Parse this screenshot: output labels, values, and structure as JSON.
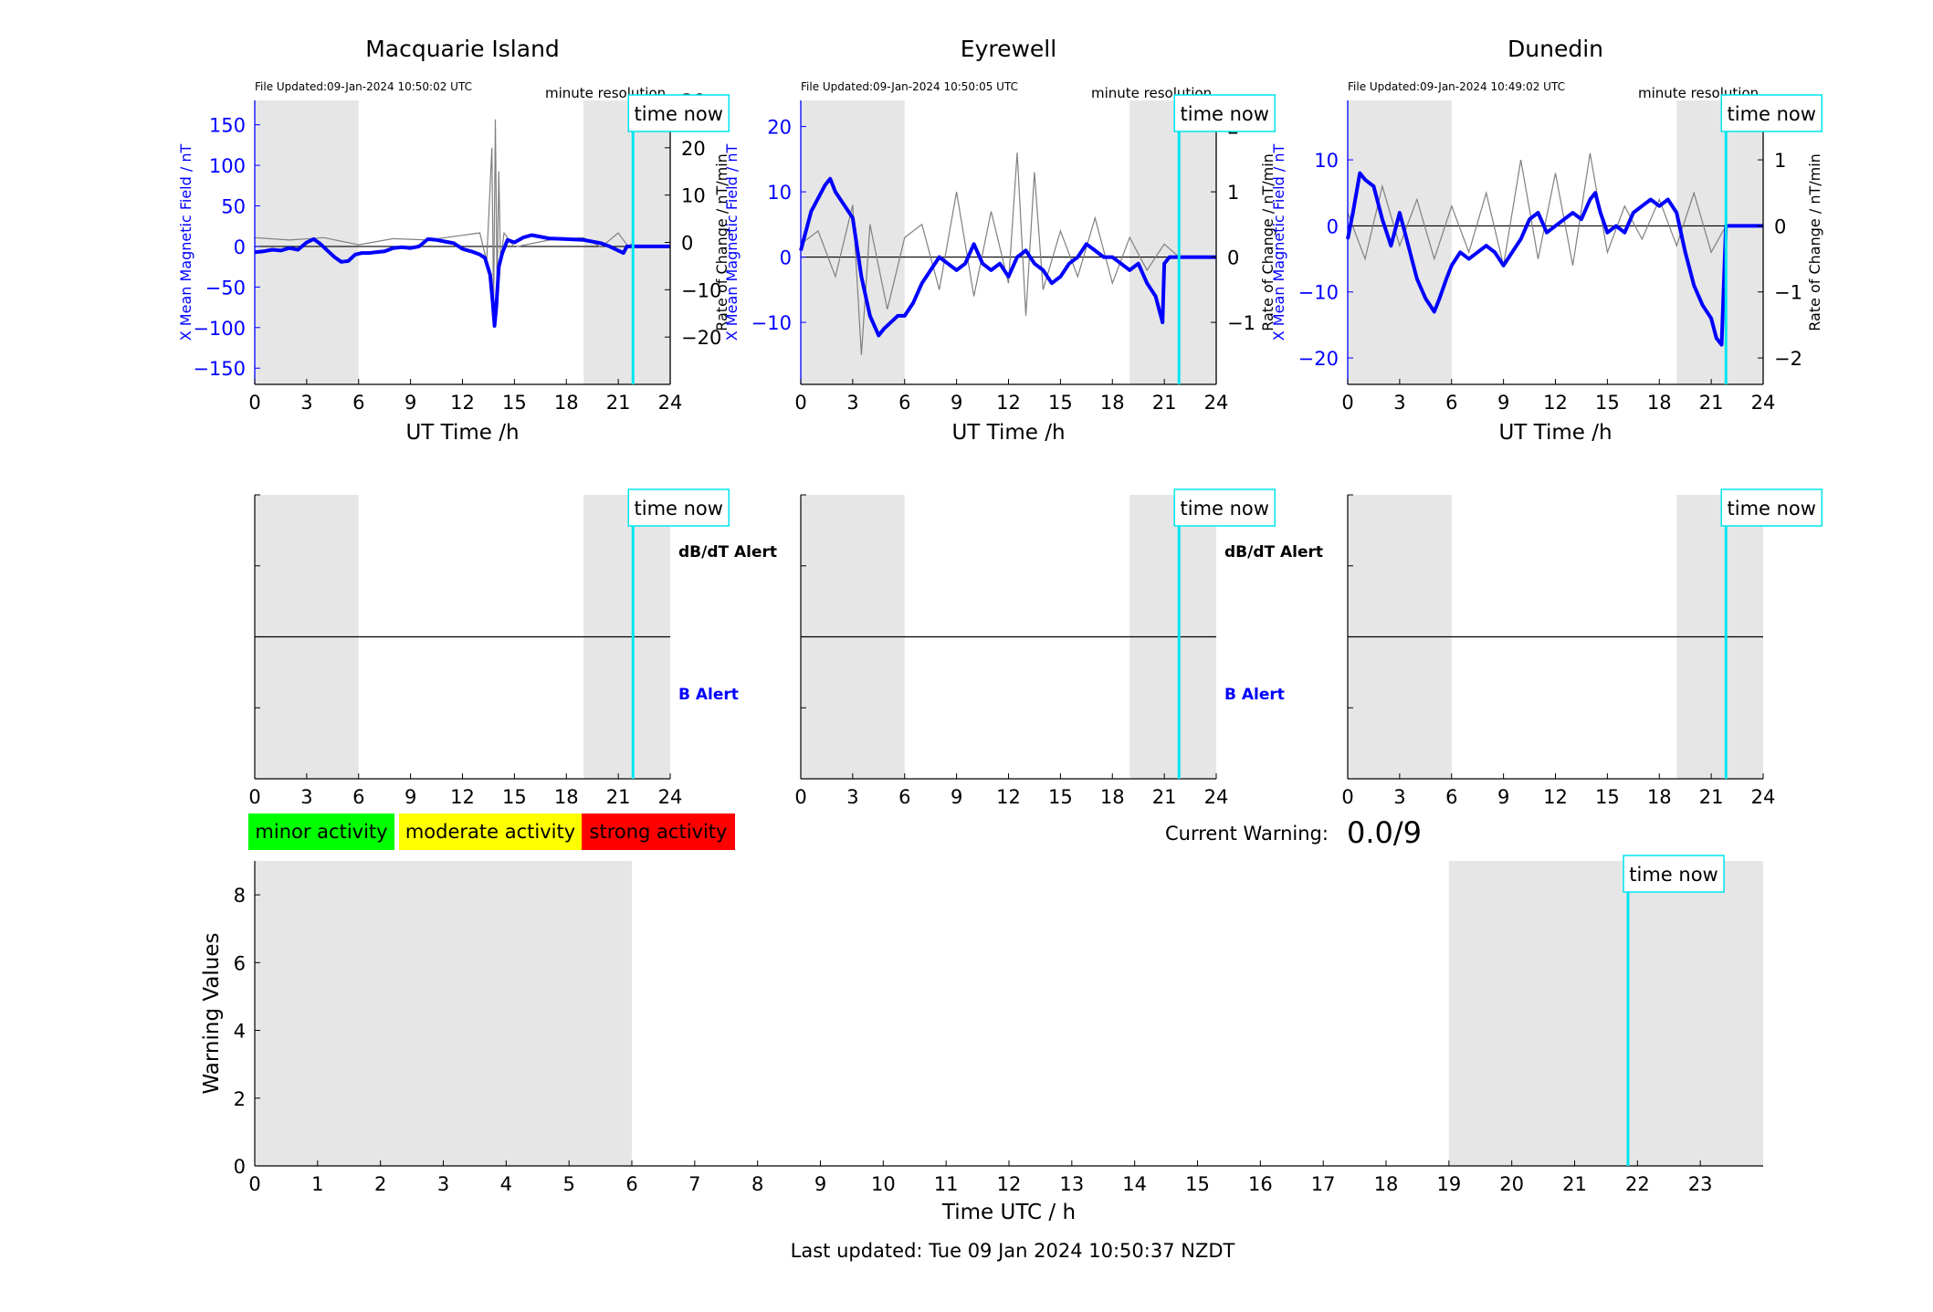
{
  "page": {
    "last_updated": "Last updated: Tue 09 Jan 2024 10:50:37 NZDT",
    "current_warning_label": "Current Warning:",
    "current_warning_value": "0.0/9"
  },
  "common": {
    "xlabel": "UT Time /h",
    "resolution": "minute resolution",
    "time_now": "time now",
    "left_ylabel": "X Mean Magnetic Field / nT",
    "right_ylabel": "Rate of Change / nT/min",
    "dbdt_alert": "dB/dT Alert",
    "b_alert": "B Alert"
  },
  "legend": {
    "minor": "minor activity",
    "moderate": "moderate activity",
    "strong": "strong activity",
    "minor_color": "#00ff00",
    "moderate_color": "#ffff00",
    "strong_color": "#ff0000"
  },
  "colors": {
    "field_line": "#0000ff",
    "rate_line": "#808080",
    "time_now_line": "#00e5ee",
    "shade": "#e6e6e6"
  },
  "chart_data": [
    {
      "type": "line",
      "title": "Macquarie Island",
      "file_updated": "File Updated:09-Jan-2024 10:50:02 UTC",
      "xlabel": "UT Time /h",
      "ylabel": "X Mean Magnetic Field / nT",
      "y2label": "Rate of Change / nT/min",
      "xlim": [
        0,
        24
      ],
      "ylim": [
        -170,
        180
      ],
      "y2lim": [
        -30,
        30
      ],
      "xticks": [
        0,
        3,
        6,
        9,
        12,
        15,
        18,
        21,
        24
      ],
      "yticks": [
        -150,
        -100,
        -50,
        0,
        50,
        100,
        150
      ],
      "y2ticks": [
        -20,
        -10,
        0,
        10,
        20,
        30
      ],
      "night_shading": [
        [
          0,
          6
        ],
        [
          19,
          24
        ]
      ],
      "time_now": 21.85,
      "series": [
        {
          "axis": "left",
          "x": [
            0,
            0.5,
            1,
            1.5,
            2,
            2.5,
            3,
            3.4,
            3.8,
            4.2,
            4.6,
            5,
            5.4,
            5.8,
            6.2,
            6.6,
            7,
            7.5,
            8,
            8.5,
            9,
            9.5,
            10,
            10.5,
            11,
            11.5,
            12,
            12.5,
            13,
            13.3,
            13.6,
            13.75,
            13.85,
            13.95,
            14.1,
            14.3,
            14.6,
            15,
            15.5,
            16,
            17,
            18,
            19,
            20,
            20.5,
            21,
            21.3,
            21.5,
            21.85,
            22,
            24
          ],
          "y": [
            -7,
            -6,
            -4,
            -5,
            -2,
            -4,
            5,
            9,
            3,
            -5,
            -13,
            -19,
            -18,
            -10,
            -8,
            -8,
            -7,
            -6,
            -2,
            -1,
            -2,
            0,
            9,
            8,
            6,
            4,
            -3,
            -6,
            -10,
            -14,
            -35,
            -70,
            -98,
            -75,
            -25,
            -8,
            8,
            5,
            11,
            14,
            10,
            9,
            8,
            4,
            0,
            -5,
            -8,
            0,
            0,
            0,
            0
          ]
        },
        {
          "axis": "right",
          "x": [
            0,
            2,
            4,
            6,
            8,
            10,
            12,
            13,
            13.4,
            13.7,
            13.8,
            13.9,
            14.0,
            14.1,
            14.2,
            14.4,
            15,
            17,
            19,
            20,
            21,
            21.6,
            21.85
          ],
          "y": [
            1,
            0.5,
            1,
            -0.5,
            0.8,
            0.5,
            1.5,
            2,
            -4,
            20,
            -14,
            26,
            -10,
            15,
            -4,
            2,
            -1,
            0.5,
            1,
            -1,
            2,
            -1,
            0
          ]
        }
      ]
    },
    {
      "type": "line",
      "title": "Eyrewell",
      "file_updated": "File Updated:09-Jan-2024 10:50:05 UTC",
      "xlabel": "UT Time /h",
      "ylabel": "X Mean Magnetic Field / nT",
      "y2label": "Rate of Change / nT/min",
      "xlim": [
        0,
        24
      ],
      "ylim": [
        -19.5,
        24
      ],
      "y2lim": [
        -1.95,
        2.4
      ],
      "xticks": [
        0,
        3,
        6,
        9,
        12,
        15,
        18,
        21,
        24
      ],
      "yticks": [
        -10,
        0,
        10,
        20
      ],
      "y2ticks": [
        -1,
        0,
        1,
        2
      ],
      "night_shading": [
        [
          0,
          6
        ],
        [
          19,
          24
        ]
      ],
      "time_now": 21.85,
      "series": [
        {
          "axis": "left",
          "x": [
            0,
            0.3,
            0.6,
            1,
            1.4,
            1.7,
            2,
            2.5,
            3,
            3.5,
            4,
            4.5,
            4.8,
            5.2,
            5.6,
            6,
            6.5,
            7,
            7.5,
            8,
            8.5,
            9,
            9.5,
            10,
            10.5,
            11,
            11.5,
            12,
            12.5,
            13,
            13.5,
            14,
            14.5,
            15,
            15.5,
            16,
            16.5,
            17,
            17.5,
            18,
            18.5,
            19,
            19.5,
            20,
            20.5,
            20.9,
            21,
            21.3,
            21.85,
            22,
            24
          ],
          "y": [
            1,
            4,
            7,
            9,
            11,
            12,
            10,
            8,
            6,
            -3,
            -9,
            -12,
            -11,
            -10,
            -9,
            -9,
            -7,
            -4,
            -2,
            0,
            -1,
            -2,
            -1,
            2,
            -1,
            -2,
            -1,
            -3,
            0,
            1,
            -1,
            -2,
            -4,
            -3,
            -1,
            0,
            2,
            1,
            0,
            0,
            -1,
            -2,
            -1,
            -4,
            -6,
            -10,
            -1,
            0,
            0,
            0,
            0
          ]
        },
        {
          "axis": "right",
          "x": [
            0,
            1,
            2,
            3,
            3.5,
            4,
            5,
            6,
            7,
            8,
            9,
            10,
            11,
            12,
            12.5,
            13,
            13.5,
            14,
            15,
            16,
            17,
            18,
            19,
            20,
            21,
            21.85
          ],
          "y": [
            0.2,
            0.4,
            -0.3,
            0.8,
            -1.5,
            0.5,
            -0.8,
            0.3,
            0.5,
            -0.5,
            1.0,
            -0.6,
            0.7,
            -0.4,
            1.6,
            -0.9,
            1.3,
            -0.5,
            0.4,
            -0.3,
            0.6,
            -0.4,
            0.3,
            -0.2,
            0.2,
            0
          ]
        }
      ]
    },
    {
      "type": "line",
      "title": "Dunedin",
      "file_updated": "File Updated:09-Jan-2024 10:49:02 UTC",
      "xlabel": "UT Time /h",
      "ylabel": "X Mean Magnetic Field / nT",
      "y2label": "Rate of Change / nT/min",
      "xlim": [
        0,
        24
      ],
      "ylim": [
        -24,
        19
      ],
      "y2lim": [
        -2.4,
        1.9
      ],
      "xticks": [
        0,
        3,
        6,
        9,
        12,
        15,
        18,
        21,
        24
      ],
      "yticks": [
        -20,
        -10,
        0,
        10
      ],
      "y2ticks": [
        -2,
        -1,
        0,
        1
      ],
      "night_shading": [
        [
          0,
          6
        ],
        [
          19,
          24
        ]
      ],
      "time_now": 21.85,
      "series": [
        {
          "axis": "left",
          "x": [
            0,
            0.3,
            0.7,
            1,
            1.5,
            2,
            2.5,
            3,
            3.5,
            4,
            4.5,
            5,
            5.3,
            5.7,
            6,
            6.5,
            7,
            7.5,
            8,
            8.5,
            9,
            9.5,
            10,
            10.5,
            11,
            11.5,
            12,
            12.5,
            13,
            13.5,
            14,
            14.3,
            14.6,
            15,
            15.5,
            16,
            16.5,
            17,
            17.5,
            18,
            18.5,
            19,
            19.5,
            20,
            20.5,
            21,
            21.3,
            21.6,
            21.85,
            22,
            24
          ],
          "y": [
            -2,
            2,
            8,
            7,
            6,
            1,
            -3,
            2,
            -3,
            -8,
            -11,
            -13,
            -11,
            -8,
            -6,
            -4,
            -5,
            -4,
            -3,
            -4,
            -6,
            -4,
            -2,
            1,
            2,
            -1,
            0,
            1,
            2,
            1,
            4,
            5,
            2,
            -1,
            0,
            -1,
            2,
            3,
            4,
            3,
            4,
            2,
            -4,
            -9,
            -12,
            -14,
            -17,
            -18,
            0,
            0,
            0
          ]
        },
        {
          "axis": "right",
          "x": [
            0,
            1,
            2,
            3,
            4,
            5,
            6,
            7,
            8,
            9,
            10,
            11,
            12,
            13,
            14,
            15,
            16,
            17,
            18,
            19,
            20,
            21,
            21.85
          ],
          "y": [
            0.2,
            -0.5,
            0.6,
            -0.3,
            0.4,
            -0.5,
            0.3,
            -0.4,
            0.5,
            -0.6,
            1.0,
            -0.5,
            0.8,
            -0.6,
            1.1,
            -0.4,
            0.3,
            -0.2,
            0.4,
            -0.3,
            0.5,
            -0.4,
            0
          ]
        }
      ]
    },
    {
      "type": "line",
      "title": "",
      "xlabel": "Time UTC / h",
      "ylabel": "Warning Values",
      "xlim": [
        0,
        24
      ],
      "ylim": [
        0,
        9
      ],
      "xticks": [
        0,
        1,
        2,
        3,
        4,
        5,
        6,
        7,
        8,
        9,
        10,
        11,
        12,
        13,
        14,
        15,
        16,
        17,
        18,
        19,
        20,
        21,
        22,
        23
      ],
      "yticks": [
        0,
        2,
        4,
        6,
        8
      ],
      "night_shading": [
        [
          0,
          6
        ],
        [
          19,
          24
        ]
      ],
      "time_now": 21.85,
      "series": []
    }
  ],
  "alert_panels": [
    {
      "night_shading": [
        [
          0,
          6
        ],
        [
          19,
          24
        ]
      ],
      "time_now": 21.85,
      "xticks": [
        0,
        3,
        6,
        9,
        12,
        15,
        18,
        21,
        24
      ],
      "show_labels": true
    },
    {
      "night_shading": [
        [
          0,
          6
        ],
        [
          19,
          24
        ]
      ],
      "time_now": 21.85,
      "xticks": [
        0,
        3,
        6,
        9,
        12,
        15,
        18,
        21,
        24
      ],
      "show_labels": true
    },
    {
      "night_shading": [
        [
          0,
          6
        ],
        [
          19,
          24
        ]
      ],
      "time_now": 21.85,
      "xticks": [
        0,
        3,
        6,
        9,
        12,
        15,
        18,
        21,
        24
      ],
      "show_labels": false
    }
  ]
}
